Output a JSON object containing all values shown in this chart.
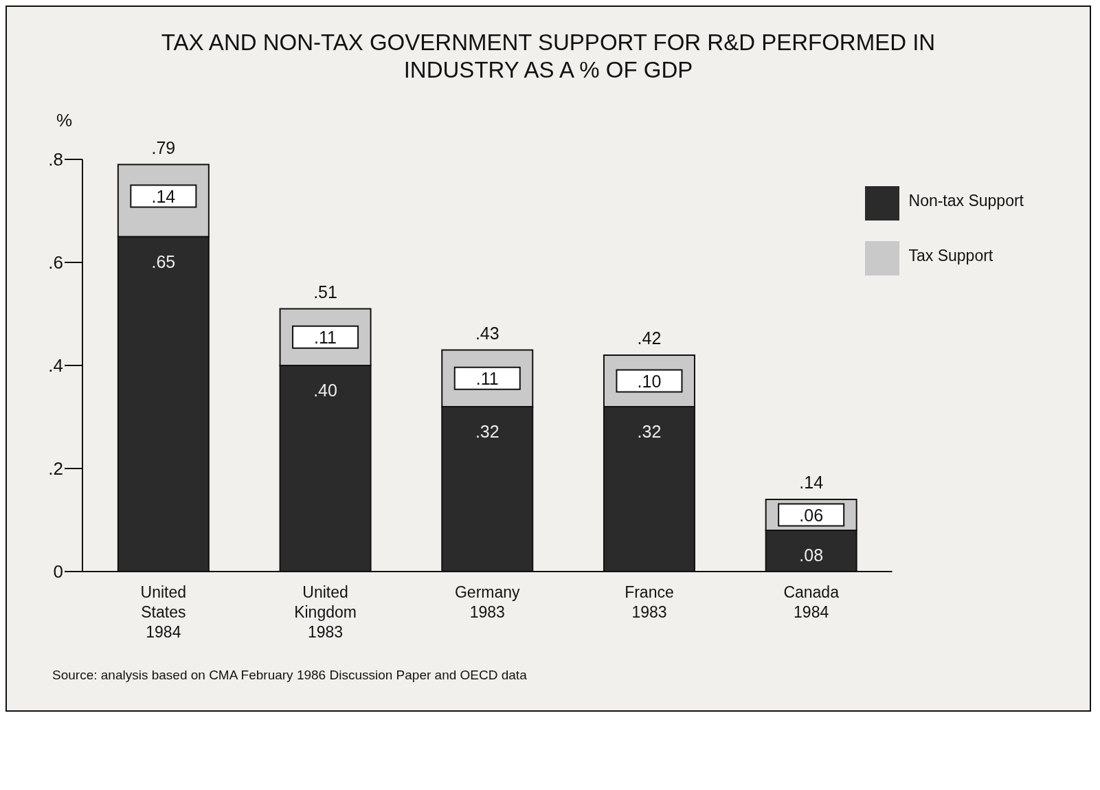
{
  "chart_data": {
    "type": "bar",
    "title": "TAX AND NON-TAX GOVERNMENT SUPPORT FOR R&D PERFORMED IN\nINDUSTRY AS A % OF GDP",
    "ylabel": "%",
    "categories": [
      "United\nStates\n1984",
      "United\nKingdom\n1983",
      "Germany\n1983",
      "France\n1983",
      "Canada\n1984"
    ],
    "stacked": true,
    "series": [
      {
        "name": "Non-tax Support",
        "color": "#2b2b2b",
        "values": [
          0.65,
          0.4,
          0.32,
          0.32,
          0.08
        ],
        "value_labels": [
          ".65",
          ".40",
          ".32",
          ".32",
          ".08"
        ]
      },
      {
        "name": "Tax Support",
        "color": "#c9c9c9",
        "values": [
          0.14,
          0.11,
          0.11,
          0.1,
          0.06
        ],
        "value_labels": [
          ".14",
          ".11",
          ".11",
          ".10",
          ".06"
        ]
      }
    ],
    "totals": [
      ".79",
      ".51",
      ".43",
      ".42",
      ".14"
    ],
    "ylim": [
      0,
      0.8
    ],
    "yticks": [
      {
        "value": 0,
        "label": "0"
      },
      {
        "value": 0.2,
        "label": ".2"
      },
      {
        "value": 0.4,
        "label": ".4"
      },
      {
        "value": 0.6,
        "label": ".6"
      },
      {
        "value": 0.8,
        "label": ".8"
      }
    ],
    "grid": false,
    "legend": "top right",
    "annotations": [
      "Source: analysis based on CMA February 1986 Discussion Paper and OECD data"
    ]
  }
}
